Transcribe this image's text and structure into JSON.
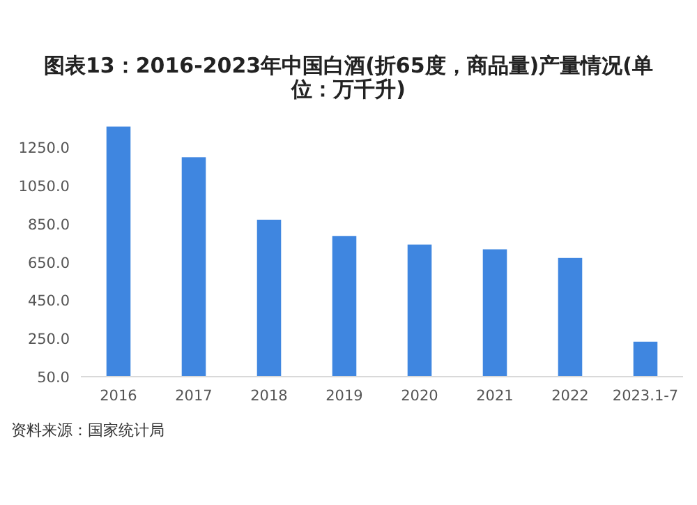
{
  "chart_data": {
    "type": "bar",
    "title": "图表13：2016-2023年中国白酒(折65度，商品量)产量情况(单位：万千升)",
    "categories": [
      "2016",
      "2017",
      "2018",
      "2019",
      "2020",
      "2021",
      "2022",
      "2023.1-7"
    ],
    "values": [
      1358,
      1198,
      871,
      786,
      741,
      716,
      671,
      233
    ],
    "color": "#3f86e0",
    "ylim": [
      50,
      1400
    ],
    "yticks": [
      {
        "value": 50,
        "label": "50.0"
      },
      {
        "value": 250,
        "label": "250.0"
      },
      {
        "value": 450,
        "label": "450.0"
      },
      {
        "value": 650,
        "label": "650.0"
      },
      {
        "value": 850,
        "label": "850.0"
      },
      {
        "value": 1050,
        "label": "1050.0"
      },
      {
        "value": 1250,
        "label": "1250.0"
      }
    ],
    "grid": false,
    "annotations": [
      "资料来源：国家统计局"
    ]
  }
}
